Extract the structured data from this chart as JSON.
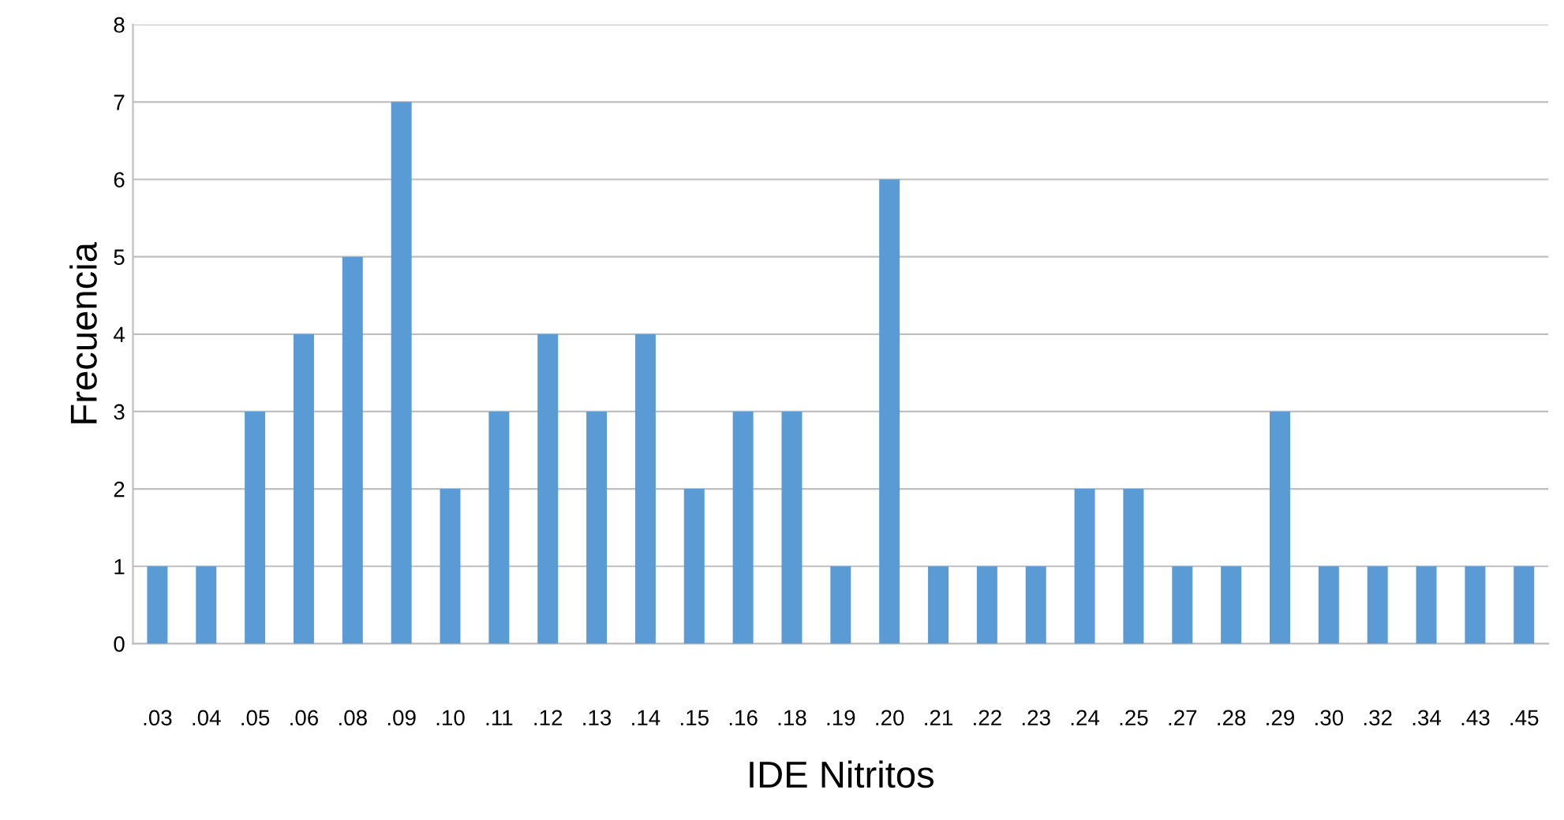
{
  "chart_data": {
    "type": "bar",
    "xlabel": "IDE Nitritos",
    "ylabel": "Frecuencia",
    "categories": [
      ".03",
      ".04",
      ".05",
      ".06",
      ".08",
      ".09",
      ".10",
      ".11",
      ".12",
      ".13",
      ".14",
      ".15",
      ".16",
      ".18",
      ".19",
      ".20",
      ".21",
      ".22",
      ".23",
      ".24",
      ".25",
      ".27",
      ".28",
      ".29",
      ".30",
      ".32",
      ".34",
      ".43",
      ".45"
    ],
    "values": [
      1,
      1,
      3,
      4,
      5,
      7,
      2,
      3,
      4,
      3,
      4,
      2,
      3,
      3,
      1,
      6,
      1,
      1,
      1,
      2,
      2,
      1,
      1,
      3,
      1,
      1,
      1,
      1,
      1
    ],
    "color": "#5b9bd5",
    "ylim": [
      0,
      8
    ],
    "yticks": [
      0,
      1,
      2,
      3,
      4,
      5,
      6,
      7,
      8
    ],
    "grid": "y"
  }
}
